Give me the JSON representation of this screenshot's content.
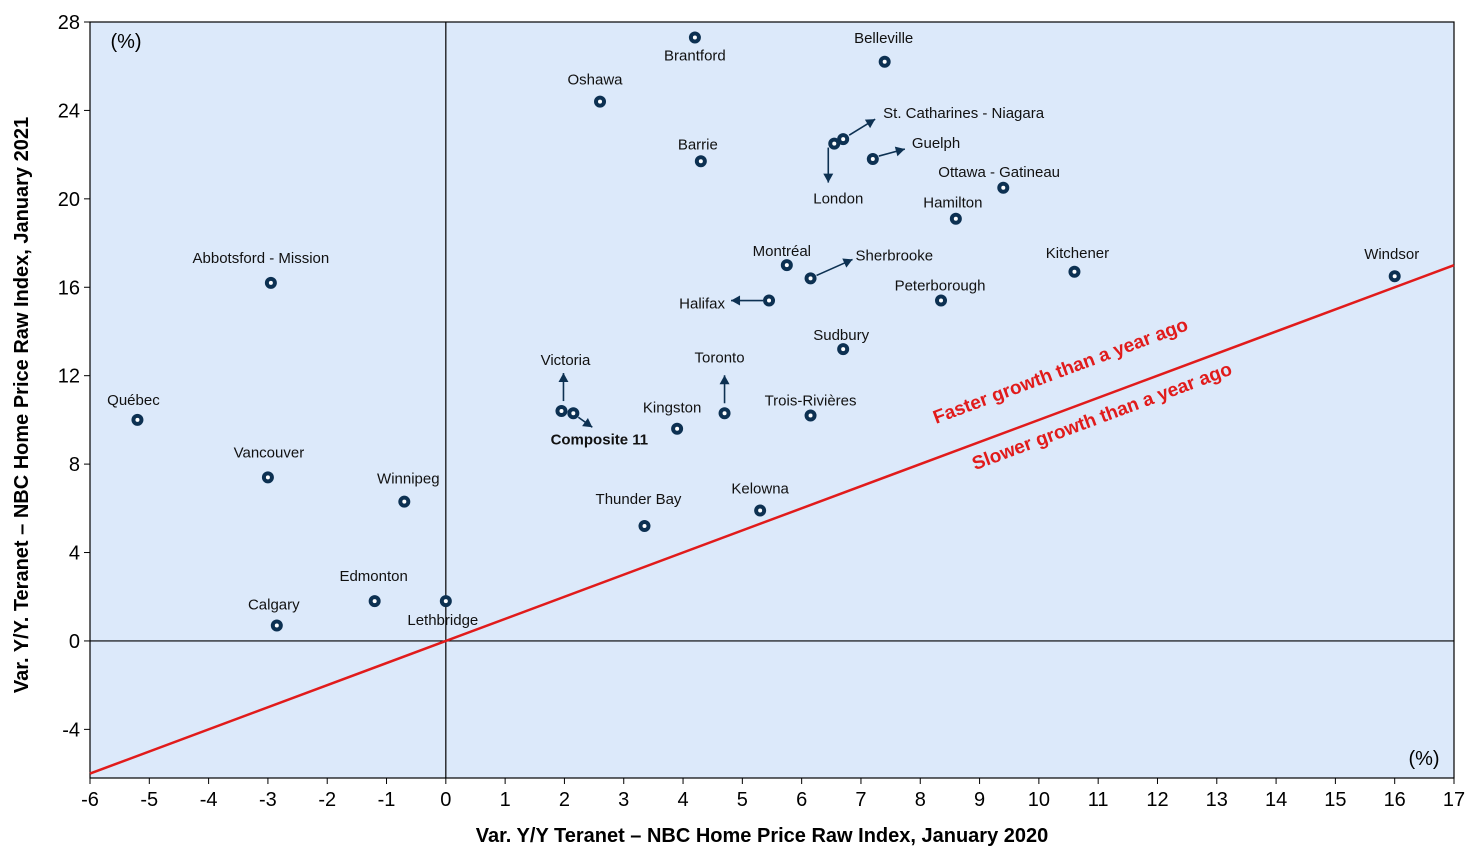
{
  "chart_data": {
    "type": "scatter",
    "xlabel": "Var. Y/Y Teranet – NBC Home Price Raw Index, January 2020",
    "ylabel": "Var. Y/Y. Teranet – NBC Home Price Raw Index, January 2021",
    "x_unit": "(%)",
    "y_unit": "(%)",
    "xlim": [
      -6,
      17
    ],
    "ylim": [
      -6.2,
      28
    ],
    "xticks": [
      "-6",
      "-5",
      "-4",
      "-3",
      "-2",
      "-1",
      "0",
      "1",
      "2",
      "3",
      "4",
      "5",
      "6",
      "7",
      "8",
      "9",
      "10",
      "11",
      "12",
      "13",
      "14",
      "15",
      "16",
      "17"
    ],
    "yticks": [
      "-4",
      "0",
      "4",
      "8",
      "12",
      "16",
      "20",
      "24",
      "28"
    ],
    "grid": false,
    "background_color": "#dce9fa",
    "marker_color": "#0d3152",
    "reference_line": {
      "slope": 1,
      "intercept": 0,
      "color": "#e11b1b"
    },
    "annotations": [
      {
        "text": "Faster growth than a year ago",
        "color": "#e11b1b"
      },
      {
        "text": "Slower growth than a year ago",
        "color": "#e11b1b"
      }
    ],
    "points": [
      {
        "name": "Brantford",
        "x": 4.2,
        "y": 27.3
      },
      {
        "name": "Belleville",
        "x": 7.4,
        "y": 26.2
      },
      {
        "name": "Oshawa",
        "x": 2.6,
        "y": 24.4
      },
      {
        "name": "St. Catharines - Niagara",
        "x": 6.7,
        "y": 22.7
      },
      {
        "name": "London",
        "x": 6.55,
        "y": 22.5
      },
      {
        "name": "Guelph",
        "x": 7.2,
        "y": 21.8
      },
      {
        "name": "Barrie",
        "x": 4.3,
        "y": 21.7
      },
      {
        "name": "Ottawa - Gatineau",
        "x": 9.4,
        "y": 20.5
      },
      {
        "name": "Hamilton",
        "x": 8.6,
        "y": 19.1
      },
      {
        "name": "Montréal",
        "x": 5.75,
        "y": 17.0
      },
      {
        "name": "Kitchener",
        "x": 10.6,
        "y": 16.7
      },
      {
        "name": "Windsor",
        "x": 16.0,
        "y": 16.5
      },
      {
        "name": "Sherbrooke",
        "x": 6.15,
        "y": 16.4
      },
      {
        "name": "Abbotsford - Mission",
        "x": -2.95,
        "y": 16.2
      },
      {
        "name": "Halifax",
        "x": 5.45,
        "y": 15.4
      },
      {
        "name": "Peterborough",
        "x": 8.35,
        "y": 15.4
      },
      {
        "name": "Sudbury",
        "x": 6.7,
        "y": 13.2
      },
      {
        "name": "Victoria",
        "x": 1.95,
        "y": 10.4
      },
      {
        "name": "Composite 11",
        "x": 2.15,
        "y": 10.3
      },
      {
        "name": "Toronto",
        "x": 4.7,
        "y": 10.3
      },
      {
        "name": "Trois-Rivières",
        "x": 6.15,
        "y": 10.2
      },
      {
        "name": "Québec",
        "x": -5.2,
        "y": 10.0
      },
      {
        "name": "Kingston",
        "x": 3.9,
        "y": 9.6
      },
      {
        "name": "Vancouver",
        "x": -3.0,
        "y": 7.4
      },
      {
        "name": "Winnipeg",
        "x": -0.7,
        "y": 6.3
      },
      {
        "name": "Kelowna",
        "x": 5.3,
        "y": 5.9
      },
      {
        "name": "Thunder Bay",
        "x": 3.35,
        "y": 5.2
      },
      {
        "name": "Edmonton",
        "x": -1.2,
        "y": 1.8
      },
      {
        "name": "Lethbridge",
        "x": 0.0,
        "y": 1.8
      },
      {
        "name": "Calgary",
        "x": -2.85,
        "y": 0.7
      }
    ]
  }
}
